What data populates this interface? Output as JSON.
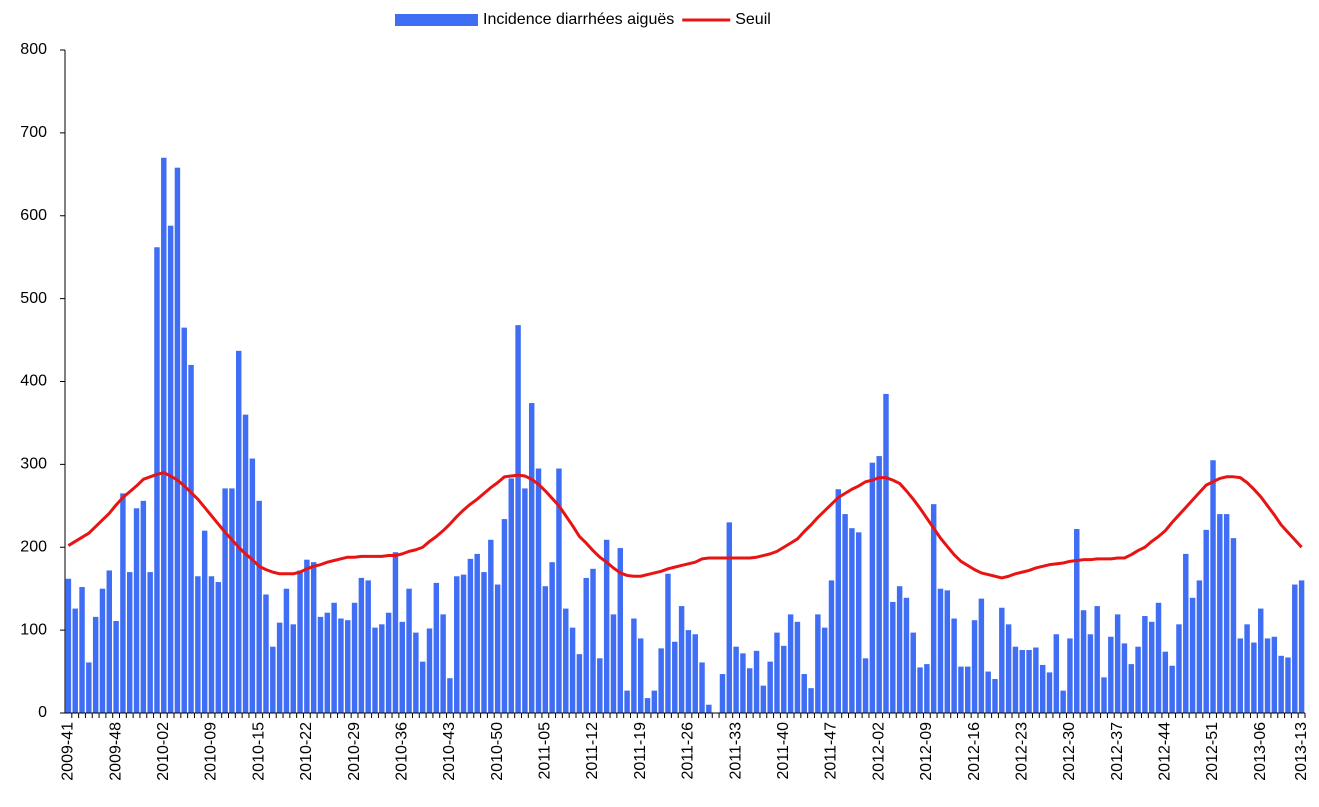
{
  "chart_data": {
    "type": "bar",
    "categories": [
      "2009-41",
      null,
      null,
      null,
      null,
      null,
      null,
      "2009-48",
      null,
      null,
      null,
      null,
      null,
      null,
      "2010-02",
      null,
      null,
      null,
      null,
      null,
      null,
      "2010-09",
      null,
      null,
      null,
      null,
      null,
      null,
      "2010-15",
      null,
      null,
      null,
      null,
      null,
      null,
      "2010-22",
      null,
      null,
      null,
      null,
      null,
      null,
      "2010-29",
      null,
      null,
      null,
      null,
      null,
      null,
      "2010-36",
      null,
      null,
      null,
      null,
      null,
      null,
      "2010-43",
      null,
      null,
      null,
      null,
      null,
      null,
      "2010-50",
      null,
      null,
      null,
      null,
      null,
      null,
      "2011-05",
      null,
      null,
      null,
      null,
      null,
      null,
      "2011-12",
      null,
      null,
      null,
      null,
      null,
      null,
      "2011-19",
      null,
      null,
      null,
      null,
      null,
      null,
      "2011-26",
      null,
      null,
      null,
      null,
      null,
      null,
      "2011-33",
      null,
      null,
      null,
      null,
      null,
      null,
      "2011-40",
      null,
      null,
      null,
      null,
      null,
      null,
      "2011-47",
      null,
      null,
      null,
      null,
      null,
      null,
      "2012-02",
      null,
      null,
      null,
      null,
      null,
      null,
      "2012-09",
      null,
      null,
      null,
      null,
      null,
      null,
      "2012-16",
      null,
      null,
      null,
      null,
      null,
      null,
      "2012-23",
      null,
      null,
      null,
      null,
      null,
      null,
      "2012-30",
      null,
      null,
      null,
      null,
      null,
      null,
      "2012-37",
      null,
      null,
      null,
      null,
      null,
      null,
      "2012-44",
      null,
      null,
      null,
      null,
      null,
      null,
      "2012-51",
      null,
      null,
      null,
      null,
      null,
      null,
      "2013-06",
      null,
      null,
      null,
      null,
      null,
      "2013-13"
    ],
    "series": [
      {
        "name": "Incidence diarrhées aiguës",
        "type": "bar",
        "color": "#3f6ef5",
        "values": [
          162,
          126,
          152,
          61,
          116,
          150,
          172,
          111,
          265,
          170,
          247,
          256,
          170,
          562,
          670,
          588,
          658,
          465,
          420,
          165,
          220,
          165,
          158,
          271,
          271,
          437,
          360,
          307,
          256,
          143,
          80,
          109,
          150,
          107,
          172,
          185,
          182,
          116,
          121,
          133,
          114,
          112,
          133,
          163,
          160,
          103,
          107,
          121,
          194,
          110,
          150,
          97,
          62,
          102,
          157,
          119,
          42,
          165,
          167,
          186,
          192,
          170,
          209,
          155,
          234,
          283,
          468,
          271,
          374,
          295,
          153,
          182,
          295,
          126,
          103,
          71,
          163,
          174,
          66,
          209,
          119,
          199,
          27,
          114,
          90,
          18,
          27,
          78,
          168,
          86,
          129,
          100,
          95,
          61,
          10,
          0,
          47,
          230,
          80,
          72,
          54,
          75,
          33,
          62,
          97,
          81,
          119,
          110,
          47,
          30,
          119,
          103,
          160,
          270,
          240,
          223,
          218,
          66,
          302,
          310,
          385,
          134,
          153,
          139,
          97,
          55,
          59,
          252,
          150,
          148,
          114,
          56,
          56,
          112,
          138,
          50,
          41,
          127,
          107,
          80,
          76,
          76,
          79,
          58,
          49,
          95,
          27,
          90,
          222,
          124,
          95,
          129,
          43,
          92,
          119,
          84,
          59,
          80,
          117,
          110,
          133,
          74,
          57,
          107,
          192,
          139,
          160,
          221,
          305,
          240,
          240,
          211,
          90,
          107,
          85,
          126,
          90,
          92,
          69,
          67,
          155,
          160
        ]
      },
      {
        "name": "Seuil",
        "type": "line",
        "color": "#e81414",
        "values": [
          202,
          207,
          212,
          217,
          225,
          233,
          241,
          251,
          260,
          267,
          274,
          282,
          285,
          288,
          290,
          286,
          281,
          274,
          266,
          258,
          248,
          238,
          228,
          218,
          209,
          200,
          192,
          185,
          177,
          173,
          170,
          168,
          168,
          168,
          170,
          174,
          177,
          179,
          182,
          184,
          186,
          188,
          188,
          189,
          189,
          189,
          189,
          190,
          190,
          192,
          195,
          197,
          200,
          207,
          213,
          220,
          228,
          237,
          245,
          252,
          258,
          265,
          272,
          278,
          285,
          286,
          287,
          286,
          282,
          276,
          268,
          259,
          250,
          238,
          226,
          213,
          205,
          196,
          188,
          182,
          175,
          169,
          166,
          165,
          165,
          167,
          169,
          171,
          174,
          176,
          178,
          180,
          182,
          186,
          187,
          187,
          187,
          187,
          187,
          187,
          187,
          188,
          190,
          192,
          195,
          200,
          205,
          210,
          219,
          227,
          236,
          244,
          252,
          260,
          265,
          270,
          274,
          279,
          281,
          284,
          284,
          281,
          277,
          268,
          258,
          247,
          235,
          223,
          211,
          201,
          191,
          183,
          178,
          173,
          169,
          167,
          165,
          163,
          165,
          168,
          170,
          172,
          175,
          177,
          179,
          180,
          181,
          183,
          184,
          185,
          185,
          186,
          186,
          186,
          187,
          187,
          191,
          196,
          200,
          207,
          213,
          220,
          230,
          239,
          248,
          257,
          266,
          275,
          279,
          283,
          285,
          285,
          284,
          278,
          270,
          261,
          250,
          239,
          227,
          218,
          209,
          200
        ]
      }
    ],
    "ylim": [
      0,
      800
    ],
    "yticks": [
      0,
      100,
      200,
      300,
      400,
      500,
      600,
      700,
      800
    ],
    "grid": false,
    "legend": "top"
  }
}
